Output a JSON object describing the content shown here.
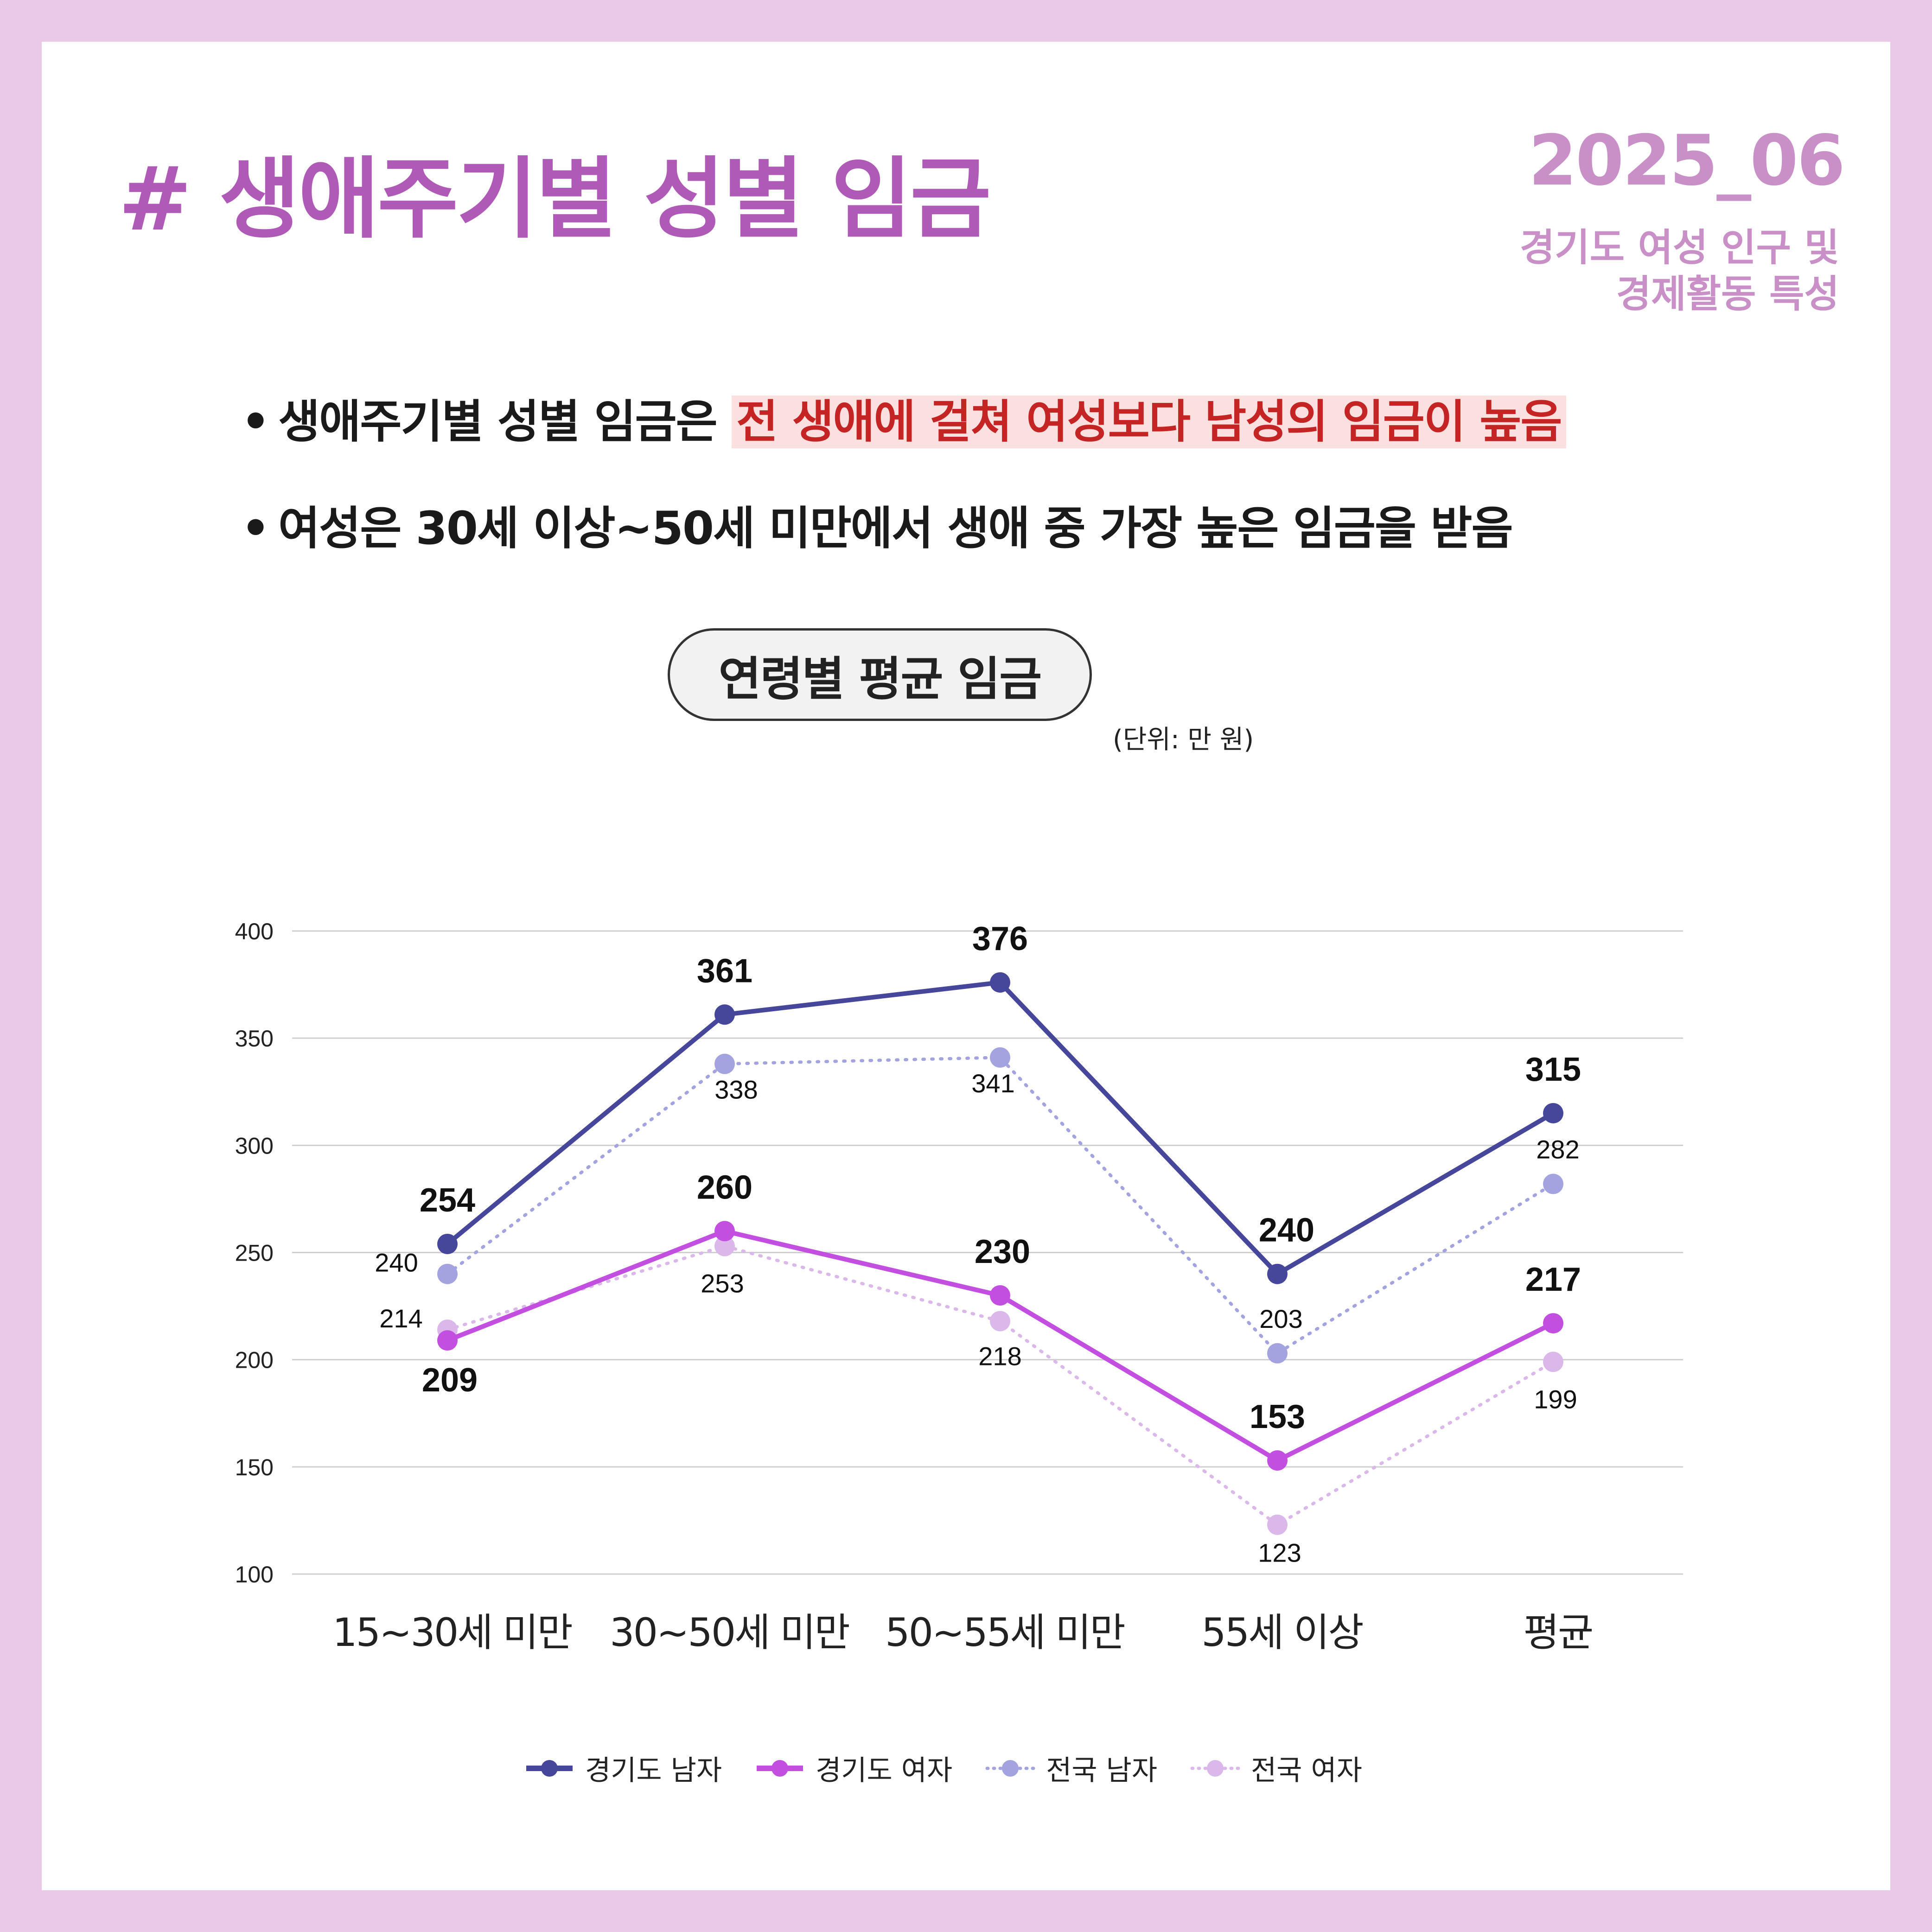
{
  "header": {
    "title": "# 생애주기별 성별 임금",
    "date": "2025_06",
    "subtitle_line1": "경기도 여성 인구 및",
    "subtitle_line2": "경제활동 특성"
  },
  "bullets": [
    {
      "prefix": "생애주기별 성별 임금은",
      "highlight": "전 생애에 걸쳐 여성보다 남성의 임금이 높음"
    },
    {
      "text": "여성은 30세 이상~50세 미만에서 생애 중 가장 높은 임금을 받음"
    }
  ],
  "colors": {
    "title": "#b05ab8",
    "gyeonggi_male": "#46479a",
    "gyeonggi_female": "#c24fe0",
    "national_male": "#a3a3e0",
    "national_female": "#dbb8ea",
    "highlight_bg": "#fbe0e0",
    "highlight_text": "#c42424"
  },
  "chart_data": {
    "type": "line",
    "title": "연령별 평균 임금",
    "unit": "(단위: 만 원)",
    "categories": [
      "15~30세 미만",
      "30~50세 미만",
      "50~55세 미만",
      "55세 이상",
      "평균"
    ],
    "ylim": [
      100,
      400
    ],
    "yticks": [
      "100",
      "150",
      "200",
      "250",
      "300",
      "350",
      "400"
    ],
    "grid": true,
    "legend_position": "bottom",
    "series": [
      {
        "name": "경기도 남자",
        "values": [
          254,
          361,
          376,
          240,
          315
        ],
        "style": "solid"
      },
      {
        "name": "경기도 여자",
        "values": [
          209,
          260,
          230,
          153,
          217
        ],
        "style": "solid"
      },
      {
        "name": "전국 남자",
        "values": [
          240,
          338,
          341,
          203,
          282
        ],
        "style": "dotted"
      },
      {
        "name": "전국 여자",
        "values": [
          214,
          253,
          218,
          123,
          199
        ],
        "style": "dotted"
      }
    ]
  }
}
